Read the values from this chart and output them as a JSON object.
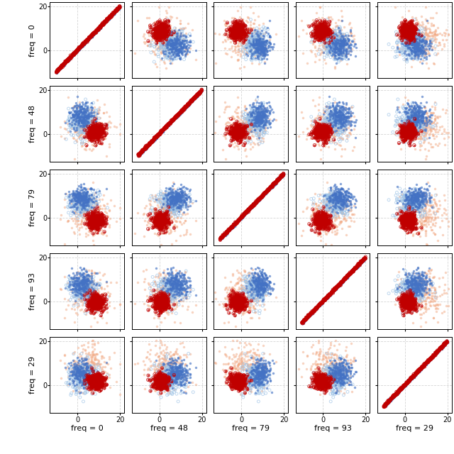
{
  "freqs": [
    0,
    48,
    79,
    93,
    29
  ],
  "axis_lim": [
    -13,
    22
  ],
  "xticks": [
    0,
    20
  ],
  "yticks": [
    0,
    20
  ],
  "colors": {
    "blue": "#4472C4",
    "red": "#C00000",
    "peach": "#F2A882",
    "light_blue": "#9DC3E6"
  },
  "figsize": [
    6.4,
    6.4
  ],
  "dpi": 100,
  "label_fontsize": 8,
  "tick_fontsize": 7
}
